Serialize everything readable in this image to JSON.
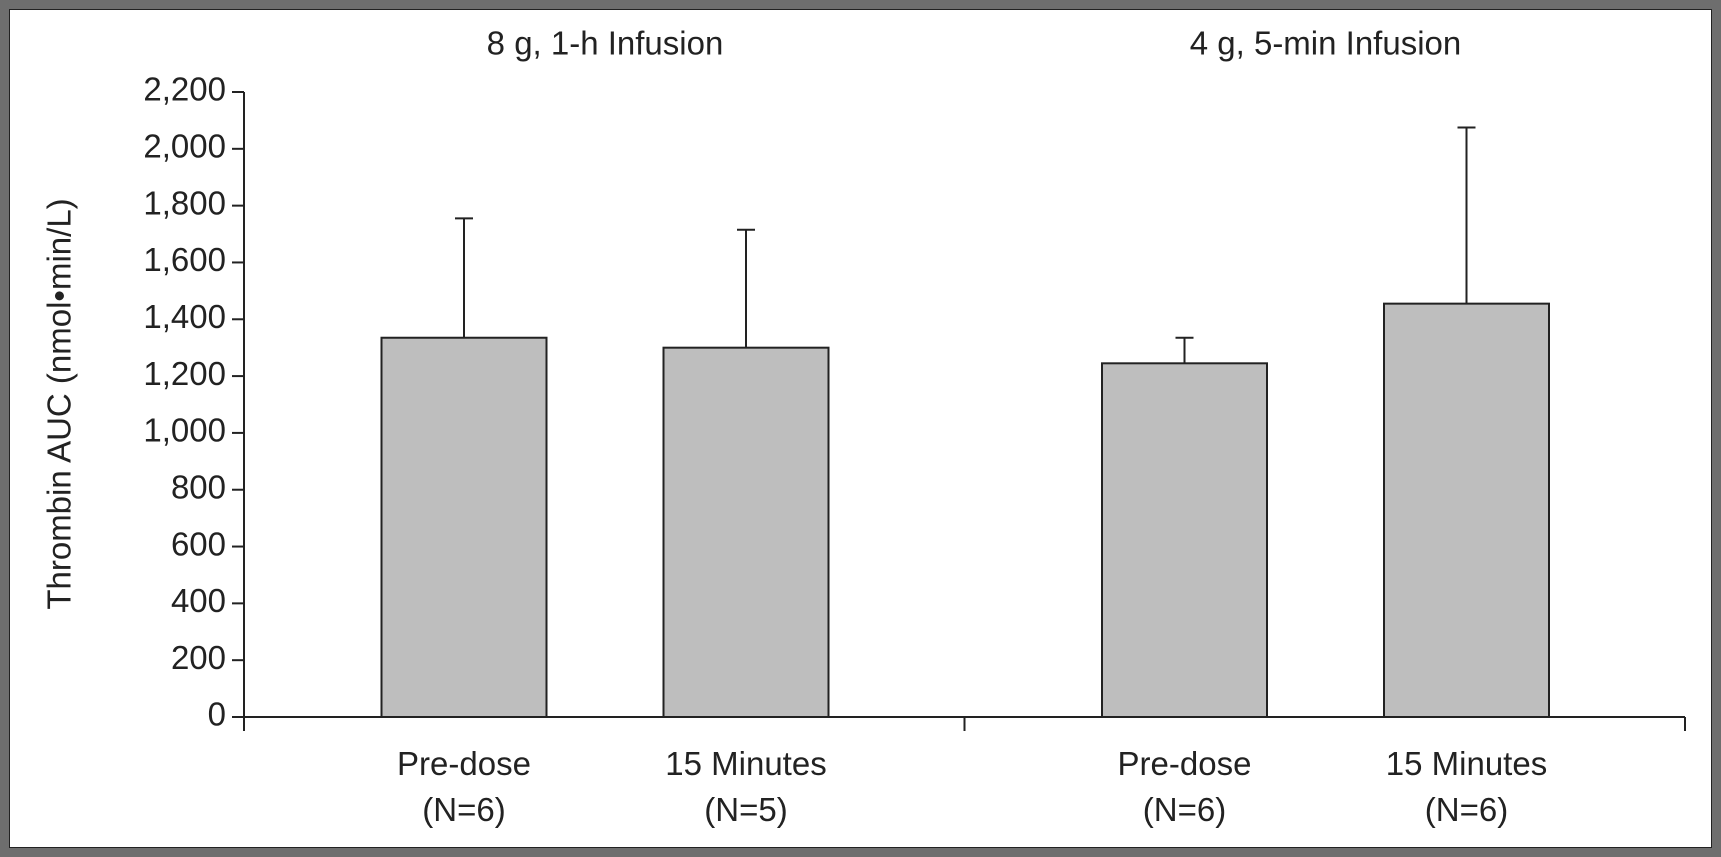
{
  "chart_data": {
    "type": "bar",
    "y_label": "Thrombin AUC (nmol•min/L)",
    "color": "#bebebe",
    "ylim": [
      0,
      2200
    ],
    "yticks": [
      0,
      200,
      400,
      600,
      800,
      {
        "value": 1000,
        "label": "1,000"
      },
      {
        "value": 1200,
        "label": "1,200"
      },
      {
        "value": 1400,
        "label": "1,400"
      },
      {
        "value": 1600,
        "label": "1,600"
      },
      {
        "value": 1800,
        "label": "1,800"
      },
      {
        "value": 2000,
        "label": "2,000"
      },
      {
        "value": 2200,
        "label": "2,200"
      }
    ],
    "groups": [
      {
        "title": "8 g, 1-h Infusion",
        "categories": [
          "Pre-dose\n(N=6)",
          "15 Minutes\n(N=5)"
        ],
        "values": [
          1335,
          1300
        ],
        "errors": [
          420,
          415
        ]
      },
      {
        "title": "4 g, 5-min Infusion",
        "categories": [
          "Pre-dose\n(N=6)",
          "15 Minutes\n(N=6)"
        ],
        "values": [
          1245,
          1455
        ],
        "errors": [
          90,
          620
        ]
      }
    ]
  }
}
